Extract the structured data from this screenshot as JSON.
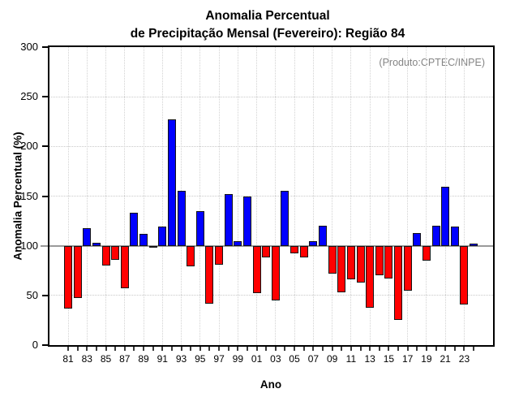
{
  "title": {
    "line1": "Anomalia Percentual",
    "line2": "de Precipitação Mensal (Fevereiro): Região 84"
  },
  "annotation": "(Produto:CPTEC/INPE)",
  "axes": {
    "ylabel": "Anomalia Percentual (%)",
    "xlabel": "Ano"
  },
  "colors": {
    "above_baseline": "#0000ff",
    "below_baseline": "#ff0000",
    "bar_outline": "#141414",
    "annotation_gray": "#858585"
  },
  "chart_data": {
    "type": "bar",
    "title": "Anomalia Percentual de Precipitação Mensal (Fevereiro): Região 84",
    "xlabel": "Ano",
    "ylabel": "Anomalia Percentual (%)",
    "ylim": [
      0,
      300
    ],
    "yticks": [
      0,
      50,
      100,
      150,
      200,
      250,
      300
    ],
    "baseline": 100,
    "grid": "dotted",
    "legend": "none",
    "color_rule": "bars >= 100 are blue (#0000ff), bars < 100 are red (#ff0000)",
    "categories": [
      1981,
      1982,
      1983,
      1984,
      1985,
      1986,
      1987,
      1988,
      1989,
      1990,
      1991,
      1992,
      1993,
      1994,
      1995,
      1996,
      1997,
      1998,
      1999,
      2000,
      2001,
      2002,
      2003,
      2004,
      2005,
      2006,
      2007,
      2008,
      2009,
      2010,
      2011,
      2012,
      2013,
      2014,
      2015,
      2016,
      2017,
      2018,
      2019,
      2020,
      2021,
      2022,
      2023,
      2024
    ],
    "values": [
      37,
      47,
      118,
      103,
      80,
      86,
      57,
      133,
      112,
      100,
      119,
      227,
      155,
      79,
      135,
      42,
      81,
      152,
      105,
      150,
      52,
      88,
      45,
      155,
      92,
      88,
      105,
      120,
      72,
      53,
      66,
      63,
      38,
      70,
      67,
      25,
      55,
      113,
      85,
      120,
      159,
      119,
      41,
      102
    ],
    "xtick_labels": [
      "81",
      "83",
      "85",
      "87",
      "89",
      "91",
      "93",
      "95",
      "97",
      "99",
      "01",
      "03",
      "05",
      "07",
      "09",
      "11",
      "13",
      "15",
      "17",
      "19",
      "21",
      "23"
    ]
  }
}
